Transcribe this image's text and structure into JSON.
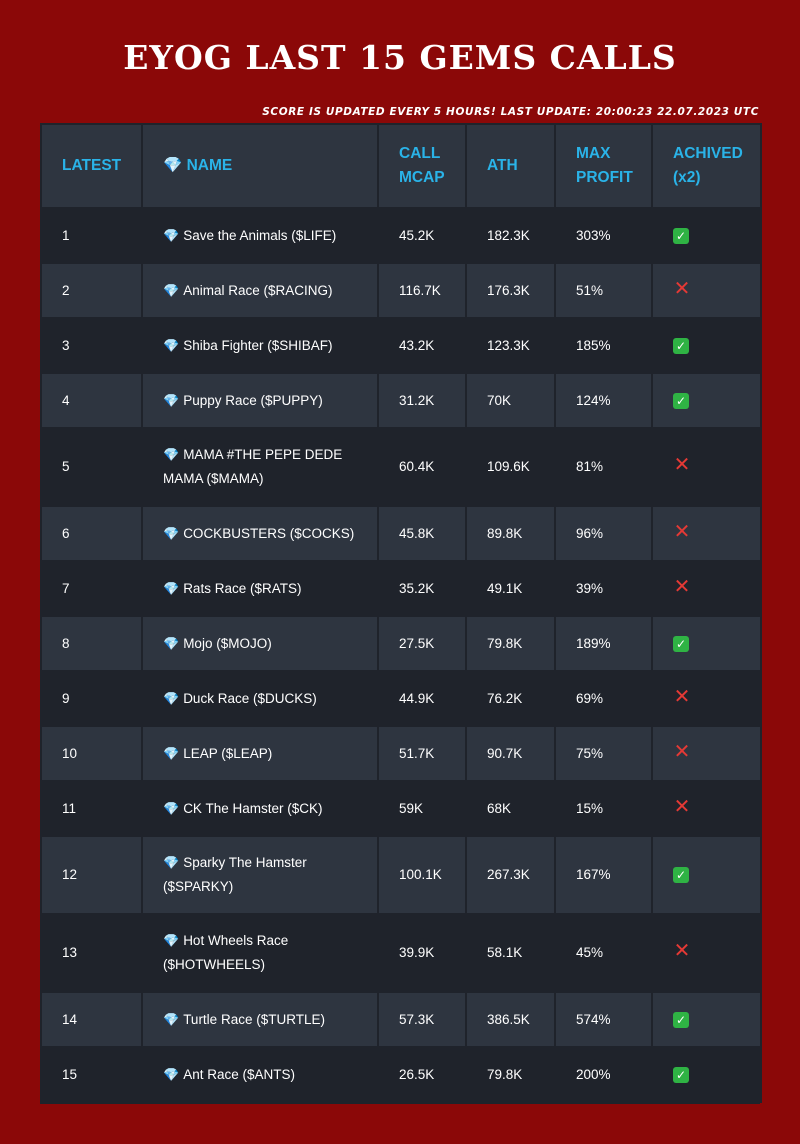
{
  "header": {
    "title": "EYOG LAST 15 GEMS CALLS",
    "update_text": "SCORE IS UPDATED EVERY 5 HOURS! LAST UPDATE: 20:00:23 22.07.2023 UTC"
  },
  "colors": {
    "background": "#8b0808",
    "header_text": "#2ab3e8",
    "row_dark": "#1f232b",
    "row_light": "#2e3540"
  },
  "table": {
    "columns": {
      "latest": [
        "LATEST"
      ],
      "name": [
        "💎 NAME"
      ],
      "call_mcap": [
        "CALL",
        "MCAP"
      ],
      "ath": [
        "ATH"
      ],
      "max_profit": [
        "MAX",
        "PROFIT"
      ],
      "achived": [
        "ACHIVED",
        "(x2)"
      ]
    },
    "gem_icon": "💎",
    "rows": [
      {
        "latest": "1",
        "name": [
          "Save the Animals ($LIFE)"
        ],
        "call_mcap": "45.2K",
        "ath": "182.3K",
        "max_profit": "303%",
        "achived": true
      },
      {
        "latest": "2",
        "name": [
          "Animal Race ($RACING)"
        ],
        "call_mcap": "116.7K",
        "ath": "176.3K",
        "max_profit": "51%",
        "achived": false
      },
      {
        "latest": "3",
        "name": [
          "Shiba Fighter ($SHIBAF)"
        ],
        "call_mcap": "43.2K",
        "ath": "123.3K",
        "max_profit": "185%",
        "achived": true
      },
      {
        "latest": "4",
        "name": [
          "Puppy Race ($PUPPY)"
        ],
        "call_mcap": "31.2K",
        "ath": "70K",
        "max_profit": "124%",
        "achived": true
      },
      {
        "latest": "5",
        "name": [
          "MAMA #THE PEPE DEDE",
          "MAMA ($MAMA)"
        ],
        "call_mcap": "60.4K",
        "ath": "109.6K",
        "max_profit": "81%",
        "achived": false
      },
      {
        "latest": "6",
        "name": [
          "COCKBUSTERS ($COCKS)"
        ],
        "call_mcap": "45.8K",
        "ath": "89.8K",
        "max_profit": "96%",
        "achived": false
      },
      {
        "latest": "7",
        "name": [
          "Rats Race ($RATS)"
        ],
        "call_mcap": "35.2K",
        "ath": "49.1K",
        "max_profit": "39%",
        "achived": false
      },
      {
        "latest": "8",
        "name": [
          "Mojo ($MOJO)"
        ],
        "call_mcap": "27.5K",
        "ath": "79.8K",
        "max_profit": "189%",
        "achived": true
      },
      {
        "latest": "9",
        "name": [
          "Duck Race ($DUCKS)"
        ],
        "call_mcap": "44.9K",
        "ath": "76.2K",
        "max_profit": "69%",
        "achived": false
      },
      {
        "latest": "10",
        "name": [
          "LEAP ($LEAP)"
        ],
        "call_mcap": "51.7K",
        "ath": "90.7K",
        "max_profit": "75%",
        "achived": false
      },
      {
        "latest": "11",
        "name": [
          "CK The Hamster ($CK)"
        ],
        "call_mcap": "59K",
        "ath": "68K",
        "max_profit": "15%",
        "achived": false
      },
      {
        "latest": "12",
        "name": [
          "Sparky The Hamster",
          "($SPARKY)"
        ],
        "call_mcap": "100.1K",
        "ath": "267.3K",
        "max_profit": "167%",
        "achived": true
      },
      {
        "latest": "13",
        "name": [
          "Hot Wheels Race",
          "($HOTWHEELS)"
        ],
        "call_mcap": "39.9K",
        "ath": "58.1K",
        "max_profit": "45%",
        "achived": false
      },
      {
        "latest": "14",
        "name": [
          "Turtle Race ($TURTLE)"
        ],
        "call_mcap": "57.3K",
        "ath": "386.5K",
        "max_profit": "574%",
        "achived": true
      },
      {
        "latest": "15",
        "name": [
          "Ant Race ($ANTS)"
        ],
        "call_mcap": "26.5K",
        "ath": "79.8K",
        "max_profit": "200%",
        "achived": true
      }
    ]
  }
}
